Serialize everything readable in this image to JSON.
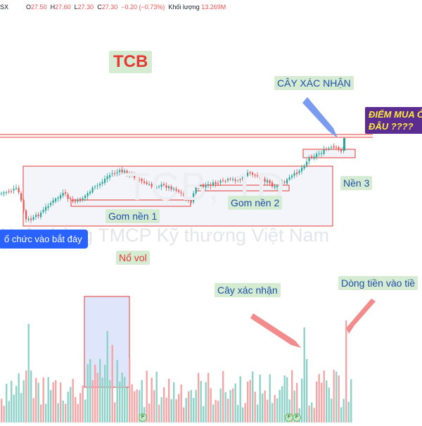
{
  "ohlc_bar": {
    "exchange_suffix": "SX",
    "open_label": "O",
    "open_value": "27.50",
    "high_label": "H",
    "high_value": "27.60",
    "low_label": "L",
    "low_value": "27.30",
    "close_label": "C",
    "close_value": "27.30",
    "change_value": "−0.20 (−0.73%)",
    "volume_label": "Khối lượng",
    "volume_value": "13.269M"
  },
  "watermark": {
    "symbol_text": "TCB, 1D",
    "company_text": "Ngân hàng TMCP Kỹ thương Việt Nam"
  },
  "annotations": {
    "ticker": "TCB",
    "confirm_candle": "CÂY XÁC NHẬN",
    "buy_question": "ĐIỂM MUA Ở ĐÂU ????",
    "base_3": "Nền 3",
    "base_1": "Gom nền 1",
    "base_2": "Gom nền 2",
    "institution_bottom": "ổ chức vào bắt đáy",
    "volume_spike": "Nổ vol",
    "confirm_candle_volume": "Cây xác nhận",
    "money_flow": "Dòng tiền vào tiề"
  },
  "event_markers": [
    "F",
    "F",
    "F"
  ],
  "colors": {
    "up": "#26a69a",
    "down": "#ef5350",
    "volume_up": "#8dd3c8",
    "volume_down": "#f5a5a5",
    "box_border": "#e53935",
    "box_fill": "#f3f5fb",
    "resistance": "#e53935",
    "arrow_blue": "#7a9cf0",
    "arrow_red": "#f28b8b",
    "button_blue": "#2962ff",
    "purple": "#5c2d91",
    "tag_bg": "#d6ecd2",
    "text_blue": "#1e4fa8"
  },
  "icons": [
    "f-event-icon"
  ]
}
